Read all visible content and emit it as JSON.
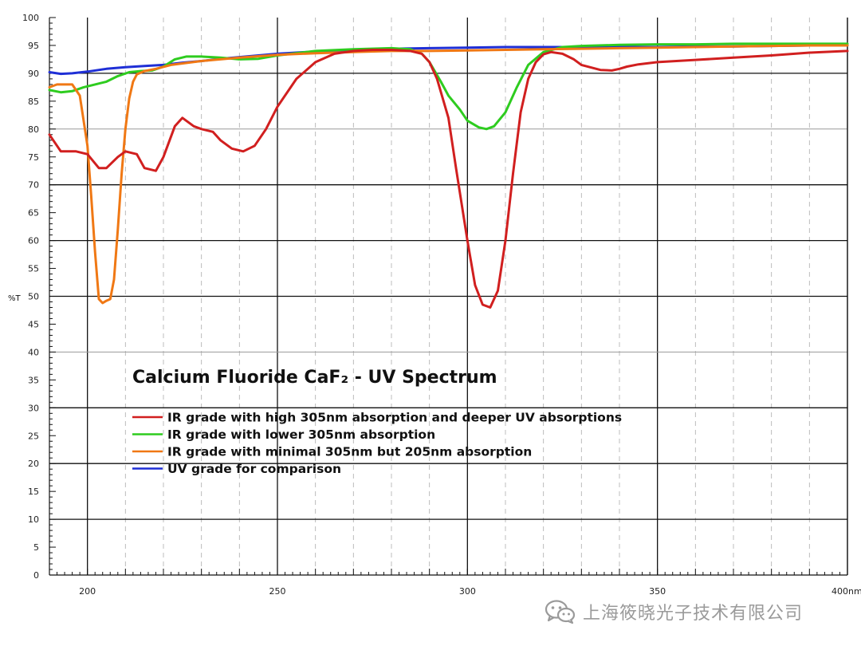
{
  "chart_data": {
    "type": "line",
    "title": "Calcium Fluoride CaF₂ - UV Spectrum",
    "xlabel": "",
    "ylabel": "%T",
    "x_unit_suffix": "nm",
    "xlim": [
      190,
      400
    ],
    "ylim": [
      0,
      100
    ],
    "x_major_ticks": [
      200,
      250,
      300,
      350,
      400
    ],
    "y_major_ticks": [
      0,
      5,
      10,
      15,
      20,
      25,
      30,
      35,
      40,
      45,
      50,
      55,
      60,
      65,
      70,
      75,
      80,
      85,
      90,
      95,
      100
    ],
    "grid": true,
    "legend_position": "center-left",
    "series": [
      {
        "name": "IR grade with high 305nm absorption and deeper UV absorptions",
        "color": "#d11f1f",
        "x": [
          190,
          193,
          197,
          200,
          203,
          205,
          208,
          210,
          213,
          215,
          218,
          220,
          223,
          225,
          228,
          230,
          233,
          235,
          238,
          241,
          244,
          247,
          250,
          255,
          260,
          265,
          270,
          275,
          280,
          285,
          288,
          290,
          292,
          295,
          297,
          300,
          302,
          304,
          306,
          308,
          310,
          312,
          314,
          316,
          318,
          320,
          322,
          325,
          328,
          330,
          335,
          338,
          340,
          342,
          345,
          350,
          360,
          370,
          380,
          390,
          400
        ],
        "y": [
          79,
          76,
          76,
          75.5,
          73,
          73,
          75,
          76,
          75.5,
          73,
          72.5,
          75,
          80.5,
          82,
          80.5,
          80,
          79.5,
          78,
          76.5,
          76,
          77,
          80,
          84,
          89,
          92,
          93.5,
          94,
          94.2,
          94.2,
          94,
          93.5,
          92,
          89,
          82,
          73,
          60,
          52,
          48.5,
          48,
          51,
          60,
          72,
          83,
          89,
          92,
          93.4,
          93.8,
          93.5,
          92.5,
          91.5,
          90.6,
          90.5,
          90.8,
          91.2,
          91.6,
          92,
          92.4,
          92.8,
          93.2,
          93.7,
          94
        ]
      },
      {
        "name": "IR grade with lower 305nm absorption",
        "color": "#2ecc1f",
        "x": [
          190,
          193,
          196,
          199,
          202,
          205,
          208,
          211,
          214,
          217,
          220,
          223,
          226,
          230,
          235,
          240,
          245,
          250,
          260,
          270,
          280,
          285,
          288,
          290,
          293,
          295,
          298,
          300,
          303,
          305,
          307,
          310,
          313,
          316,
          320,
          325,
          330,
          340,
          350,
          360,
          370,
          380,
          390,
          400
        ],
        "y": [
          87,
          86.6,
          86.8,
          87.5,
          88,
          88.5,
          89.5,
          90.2,
          90.4,
          90.5,
          91.2,
          92.5,
          93,
          93,
          92.8,
          92.5,
          92.6,
          93.2,
          94,
          94.3,
          94.5,
          94.3,
          93.5,
          92,
          88.5,
          86,
          83.5,
          81.5,
          80.3,
          80,
          80.5,
          83,
          87.5,
          91.5,
          93.8,
          94.7,
          94.9,
          95.1,
          95.2,
          95.2,
          95.3,
          95.3,
          95.3,
          95.3
        ]
      },
      {
        "name": "IR grade with minimal 305nm but 205nm absorption",
        "color": "#f07814",
        "x": [
          190,
          192,
          194,
          196,
          198,
          200,
          201,
          202,
          203,
          204,
          205,
          206,
          207,
          208,
          209,
          210,
          211,
          212,
          213,
          215,
          218,
          222,
          230,
          240,
          250,
          260,
          270,
          280,
          290,
          300,
          310,
          320,
          330,
          340,
          350,
          360,
          370,
          380,
          390,
          400
        ],
        "y": [
          87.5,
          88,
          88,
          88,
          86,
          77,
          68,
          58,
          49.5,
          48.8,
          49.2,
          49.5,
          53,
          62,
          72,
          80,
          85.5,
          88.5,
          89.8,
          90.4,
          90.8,
          91.5,
          92.2,
          92.8,
          93.3,
          93.6,
          93.8,
          94,
          94,
          94.1,
          94.2,
          94.3,
          94.4,
          94.5,
          94.6,
          94.7,
          94.8,
          94.9,
          95,
          95
        ]
      },
      {
        "name": "UV grade for comparison",
        "color": "#1f2fd6",
        "x": [
          190,
          193,
          196,
          200,
          205,
          210,
          215,
          220,
          225,
          230,
          235,
          240,
          245,
          250,
          260,
          270,
          280,
          290,
          300,
          310,
          320,
          330,
          340,
          350,
          360,
          370,
          380,
          390,
          400
        ],
        "y": [
          90.2,
          89.9,
          90,
          90.3,
          90.8,
          91.1,
          91.3,
          91.5,
          91.9,
          92.2,
          92.6,
          92.9,
          93.2,
          93.5,
          93.9,
          94.2,
          94.4,
          94.5,
          94.6,
          94.7,
          94.7,
          94.7,
          94.7,
          94.7,
          94.8,
          94.8,
          94.9,
          95,
          95
        ]
      }
    ]
  },
  "watermark": {
    "text": "上海筱晓光子技术有限公司",
    "icon": "wechat-icon"
  }
}
